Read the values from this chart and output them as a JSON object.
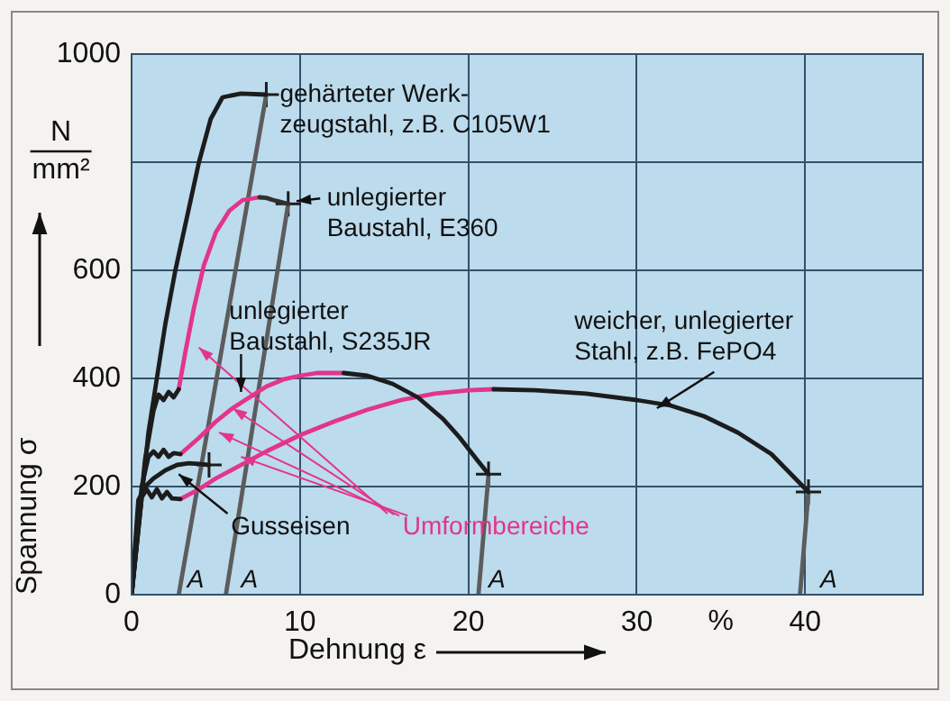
{
  "chart_data": {
    "type": "line",
    "xlabel": "Dehnung ε",
    "ylabel": "Spannung σ",
    "xlim": [
      0,
      47
    ],
    "ylim": [
      0,
      1000
    ],
    "xticks": [
      0,
      10,
      20,
      30,
      40
    ],
    "yticks": [
      0,
      200,
      400,
      600,
      {
        "value": 800,
        "label": null
      },
      1000
    ],
    "grid": true,
    "series": [
      {
        "color": "#1c1c1c",
        "x": [
          0,
          1,
          1.5,
          2,
          2.6,
          3.3,
          4,
          4.7,
          5.4,
          6.5,
          8
        ],
        "values": [
          0,
          300,
          400,
          500,
          600,
          700,
          800,
          880,
          920,
          927,
          925
        ]
      },
      {
        "color": "#1c1c1c",
        "x": [
          0,
          0.8,
          1.3,
          1.6,
          1.9,
          2.2,
          2.5,
          2.8
        ],
        "values": [
          0,
          250,
          340,
          370,
          360,
          375,
          365,
          380
        ]
      },
      {
        "color": "#303030",
        "x": [
          7.6,
          8,
          8.4,
          8.8,
          9.3
        ],
        "values": [
          735,
          734,
          730,
          727,
          723
        ]
      },
      {
        "color": "#1c1c1c",
        "x": [
          0,
          0.6,
          1,
          1.3,
          1.6,
          1.9,
          2.2,
          2.5,
          2.9
        ],
        "values": [
          0,
          200,
          255,
          265,
          255,
          268,
          255,
          262,
          260
        ]
      },
      {
        "color": "#1c1c1c",
        "x": [
          12.6,
          14,
          15.5,
          17,
          18.5,
          19.5,
          20.5,
          21.2
        ],
        "values": [
          410,
          405,
          390,
          365,
          325,
          290,
          250,
          223
        ]
      },
      {
        "color": "#1c1c1c",
        "x": [
          0,
          0.6,
          0.9,
          1.2,
          1.5,
          1.8,
          2.1,
          2.4,
          2.9
        ],
        "values": [
          0,
          180,
          195,
          180,
          195,
          178,
          190,
          178,
          177
        ]
      },
      {
        "color": "#1c1c1c",
        "x": [
          21.5,
          24,
          27,
          30,
          32,
          34,
          36,
          38,
          40.2
        ],
        "values": [
          380,
          378,
          372,
          360,
          350,
          330,
          300,
          260,
          190
        ]
      },
      {
        "color": "#1c1c1c",
        "x": [
          0,
          0.4,
          0.8,
          1.3,
          2,
          2.7,
          3.4,
          4,
          4.6
        ],
        "values": [
          0,
          175,
          200,
          215,
          230,
          240,
          243,
          242,
          240
        ]
      },
      {
        "name": "Umformbereiche",
        "color": "#e2358b",
        "x": [
          2.8,
          3.2,
          3.7,
          4.3,
          5,
          5.8,
          6.6,
          7.6
        ],
        "values": [
          380,
          450,
          530,
          610,
          670,
          710,
          730,
          735
        ]
      },
      {
        "color": "#e2358b",
        "x": [
          2.9,
          4,
          5,
          6,
          7,
          8,
          9,
          10,
          11,
          12.6
        ],
        "values": [
          260,
          290,
          320,
          345,
          365,
          385,
          398,
          405,
          410,
          410
        ]
      },
      {
        "color": "#e2358b",
        "x": [
          2.9,
          4,
          5,
          6.5,
          8,
          10,
          12,
          14,
          16,
          18,
          20,
          21.5
        ],
        "values": [
          177,
          195,
          215,
          240,
          265,
          295,
          320,
          342,
          360,
          372,
          378,
          380
        ]
      },
      {
        "color": "#5c5c5c",
        "x": [
          8,
          2.8
        ],
        "values": [
          925,
          0
        ]
      },
      {
        "color": "#5c5c5c",
        "x": [
          9.3,
          5.6
        ],
        "values": [
          723,
          0
        ]
      },
      {
        "color": "#5c5c5c",
        "x": [
          21.2,
          20.6
        ],
        "values": [
          223,
          0
        ]
      },
      {
        "color": "#5c5c5c",
        "x": [
          40.2,
          39.7
        ],
        "values": [
          190,
          0
        ]
      },
      {
        "type": "scatter",
        "marker": "cross",
        "color": "#1c1c1c",
        "x": [
          8,
          9.3,
          21.2,
          40.2,
          4.6
        ],
        "values": [
          925,
          723,
          223,
          190,
          240
        ]
      }
    ],
    "annotations": [
      "N",
      "mm²",
      "gehärteter Werk-\nzeugstahl, z.B. C105W1",
      {
        "text": "unlegierter\nBaustahl, E360",
        "x": 9.8,
        "y": 728
      },
      {
        "text": "unlegierter\nBaustahl, S235JR",
        "x": 6.5,
        "y": 375
      },
      {
        "text": "weicher, unlegierter\nStahl, z.B. FePO4",
        "x": 31.2,
        "y": 345
      },
      {
        "text": "Gusseisen",
        "x": 2.8,
        "y": 223
      },
      "%",
      "A",
      "A",
      "A",
      "A"
    ]
  }
}
